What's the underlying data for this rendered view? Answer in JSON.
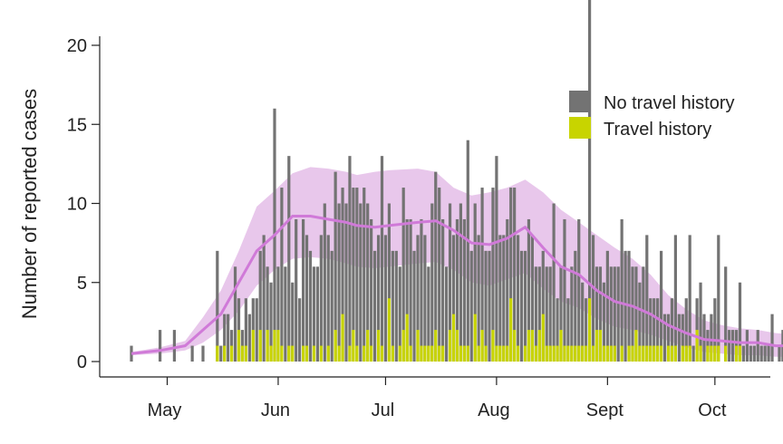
{
  "chart_data": {
    "type": "bar",
    "title": "",
    "xlabel": "",
    "ylabel": "Number of reported cases",
    "ylim": [
      0,
      22
    ],
    "yticks": [
      "0",
      "5",
      "10",
      "15",
      "20"
    ],
    "xtick_labels": [
      "May",
      "Jun",
      "Jul",
      "Aug",
      "Sept",
      "Oct"
    ],
    "x_start_date": "2022-04-21",
    "colors": {
      "no_travel": "#737373",
      "travel": "#c8d400",
      "band": "#e0b4e4",
      "line": "#d07ad8",
      "axis": "#222222"
    },
    "legend": {
      "position": "top-right",
      "entries": [
        "No travel history",
        "Travel history"
      ]
    },
    "series": [
      {
        "name": "No travel history",
        "values": [
          1,
          0,
          0,
          0,
          0,
          0,
          0,
          0,
          2,
          0,
          0,
          0,
          2,
          0,
          0,
          0,
          0,
          1,
          0,
          0,
          1,
          0,
          0,
          0,
          6,
          1,
          2,
          3,
          1,
          6,
          2,
          1,
          3,
          3,
          2,
          4,
          5,
          8,
          4,
          4,
          14,
          4,
          10,
          6,
          12,
          4,
          9,
          4,
          8,
          7,
          7,
          5,
          6,
          7,
          10,
          7,
          7,
          10,
          9,
          8,
          10,
          12,
          9,
          10,
          10,
          10,
          8,
          8,
          7,
          6,
          12,
          8,
          6,
          6,
          7,
          5,
          9,
          6,
          8,
          7,
          6,
          8,
          7,
          5,
          9,
          10,
          10,
          8,
          6,
          8,
          5,
          7,
          9,
          8,
          13,
          7,
          7,
          7,
          9,
          6,
          7,
          9,
          12,
          7,
          7,
          8,
          7,
          9,
          7,
          7,
          6,
          7,
          6,
          5,
          4,
          4,
          5,
          5,
          9,
          3,
          4,
          8,
          3,
          5,
          6,
          8,
          4,
          3,
          20,
          7,
          4,
          4,
          4,
          6,
          5,
          5,
          6,
          8,
          7,
          6,
          5,
          4,
          4,
          5,
          7,
          3,
          3,
          3,
          6,
          3,
          2,
          3,
          7,
          3,
          2,
          3,
          7,
          1,
          2,
          4,
          3,
          1,
          2,
          3,
          7,
          0,
          5,
          2,
          2,
          1,
          4,
          1,
          2,
          1,
          1,
          2,
          1,
          1,
          1,
          3,
          0,
          1,
          2,
          1,
          1,
          2,
          0,
          0,
          1,
          2,
          1,
          2,
          0,
          1,
          1,
          2,
          0,
          1,
          1,
          1,
          1,
          0,
          1,
          0,
          1,
          0,
          0,
          1,
          1,
          0,
          1,
          0,
          0,
          0,
          1,
          0,
          0,
          0,
          0,
          0,
          1,
          0,
          0,
          1
        ]
      },
      {
        "name": "Travel history",
        "values": [
          0,
          0,
          0,
          0,
          0,
          0,
          0,
          0,
          0,
          0,
          0,
          0,
          0,
          0,
          0,
          0,
          0,
          0,
          0,
          0,
          0,
          0,
          0,
          0,
          1,
          0,
          1,
          0,
          1,
          0,
          2,
          1,
          1,
          0,
          2,
          0,
          2,
          0,
          2,
          1,
          2,
          2,
          1,
          0,
          1,
          1,
          0,
          0,
          1,
          1,
          0,
          1,
          0,
          1,
          0,
          1,
          0,
          2,
          1,
          3,
          0,
          1,
          2,
          1,
          0,
          1,
          2,
          1,
          0,
          2,
          1,
          0,
          4,
          1,
          0,
          1,
          2,
          3,
          1,
          0,
          2,
          1,
          1,
          1,
          1,
          2,
          1,
          1,
          0,
          2,
          3,
          2,
          1,
          1,
          1,
          0,
          3,
          1,
          2,
          1,
          0,
          2,
          1,
          1,
          1,
          1,
          4,
          2,
          1,
          0,
          1,
          2,
          2,
          1,
          2,
          3,
          1,
          1,
          1,
          1,
          2,
          1,
          1,
          1,
          1,
          1,
          1,
          1,
          4,
          1,
          2,
          2,
          1,
          1,
          1,
          1,
          0,
          1,
          0,
          1,
          1,
          2,
          1,
          1,
          1,
          1,
          1,
          1,
          1,
          0,
          1,
          1,
          1,
          0,
          1,
          1,
          1,
          0,
          2,
          1,
          0,
          1,
          1,
          1,
          1,
          0,
          1,
          0,
          0,
          1,
          1,
          0,
          0,
          0,
          0,
          0,
          0,
          0,
          0,
          0,
          0,
          0,
          0,
          0,
          0,
          0,
          0,
          0,
          0,
          0,
          0,
          0,
          0,
          0,
          0,
          0,
          0,
          0,
          0,
          0,
          1,
          0,
          0,
          1,
          0,
          0,
          0,
          0,
          0,
          0,
          0,
          0,
          0,
          0,
          1,
          0,
          0,
          0,
          0,
          0,
          0,
          0,
          0,
          0
        ]
      },
      {
        "name": "Moving average",
        "type": "line",
        "x": [
          0,
          8,
          15,
          20,
          25,
          30,
          35,
          40,
          45,
          50,
          55,
          60,
          63,
          68,
          72,
          80,
          85,
          90,
          95,
          100,
          105,
          110,
          115,
          120,
          125,
          130,
          135,
          140,
          145,
          150,
          155,
          160,
          165,
          170,
          175,
          180,
          185,
          190,
          195,
          200,
          205,
          210,
          215,
          218
        ],
        "values": [
          0.5,
          0.7,
          1,
          2,
          3,
          5,
          7,
          8,
          9.2,
          9.2,
          9,
          8.8,
          8.6,
          8.5,
          8.6,
          8.8,
          8.9,
          8.3,
          7.5,
          7.4,
          7.8,
          8.5,
          7.2,
          6,
          5.5,
          4.5,
          3.8,
          3.5,
          3,
          2.3,
          1.8,
          1.4,
          1.3,
          1.2,
          1.2,
          1,
          1,
          0.9,
          0.9,
          0.8,
          0.9,
          0.9,
          0.8,
          0.7
        ]
      },
      {
        "name": "Confidence band",
        "type": "area",
        "x": [
          0,
          8,
          15,
          20,
          25,
          30,
          35,
          40,
          45,
          50,
          55,
          60,
          63,
          68,
          72,
          80,
          85,
          90,
          95,
          100,
          105,
          110,
          115,
          120,
          125,
          130,
          135,
          140,
          145,
          150,
          155,
          160,
          165,
          170,
          175,
          180,
          185,
          190,
          195,
          200,
          205,
          210,
          215,
          218
        ],
        "lower": [
          0.4,
          0.5,
          0.7,
          1.2,
          2,
          3.2,
          4.8,
          5.8,
          6.5,
          6.6,
          6.5,
          6.2,
          6,
          5.9,
          6,
          6.2,
          6.3,
          5.8,
          5,
          4.8,
          5.2,
          5.6,
          4.6,
          3.8,
          3.4,
          2.7,
          2.2,
          2,
          1.7,
          1.3,
          0.9,
          0.6,
          0.5,
          0.4,
          0.4,
          0.3,
          0.3,
          0.3,
          0.3,
          0.2,
          0.2,
          0.2,
          0.2,
          0.2
        ],
        "upper": [
          0.6,
          0.9,
          1.3,
          2.8,
          4.5,
          7,
          9.8,
          10.8,
          11.9,
          12.3,
          12.2,
          12,
          11.8,
          12,
          12.1,
          12.2,
          12,
          11,
          10.5,
          10.7,
          11,
          11.5,
          10.7,
          9.6,
          8.8,
          8,
          7.2,
          6.5,
          5.5,
          4.2,
          3.3,
          2.6,
          2.3,
          2.1,
          2,
          1.8,
          1.7,
          1.6,
          1.6,
          1.5,
          1.7,
          1.8,
          1.6,
          1.5
        ]
      }
    ]
  }
}
